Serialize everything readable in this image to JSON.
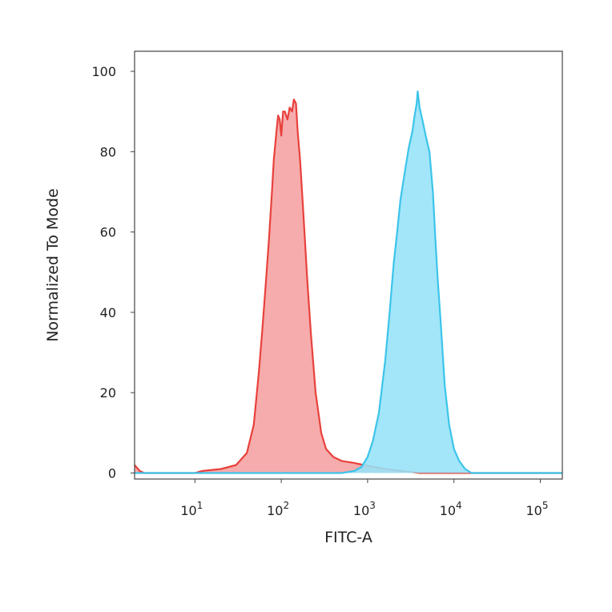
{
  "chart_data": {
    "type": "area",
    "title": "",
    "xlabel": "FITC-A",
    "ylabel": "Normalized To Mode",
    "x_scale": "log",
    "xlim": [
      2,
      180000
    ],
    "ylim": [
      -1.5,
      105
    ],
    "y_ticks": [
      {
        "value": 0,
        "label": "0"
      },
      {
        "value": 20,
        "label": "20"
      },
      {
        "value": 40,
        "label": "40"
      },
      {
        "value": 60,
        "label": "60"
      },
      {
        "value": 80,
        "label": "80"
      },
      {
        "value": 100,
        "label": "100"
      }
    ],
    "x_ticks": [
      {
        "value": 10,
        "base": "10",
        "exp": "1"
      },
      {
        "value": 100,
        "base": "10",
        "exp": "2"
      },
      {
        "value": 1000,
        "base": "10",
        "exp": "3"
      },
      {
        "value": 10000,
        "base": "10",
        "exp": "4"
      },
      {
        "value": 100000,
        "base": "10",
        "exp": "5"
      }
    ],
    "grid": false,
    "legend": "none",
    "series": [
      {
        "color": "#e8413c",
        "fill": "#f5a0a0",
        "points": [
          [
            2,
            2
          ],
          [
            2.3,
            0.5
          ],
          [
            2.6,
            0
          ],
          [
            10,
            0
          ],
          [
            12,
            0.5
          ],
          [
            20,
            1
          ],
          [
            30,
            2
          ],
          [
            40,
            5
          ],
          [
            48,
            12
          ],
          [
            55,
            25
          ],
          [
            60,
            35
          ],
          [
            65,
            45
          ],
          [
            72,
            58
          ],
          [
            78,
            70
          ],
          [
            82,
            78
          ],
          [
            88,
            85
          ],
          [
            92,
            89
          ],
          [
            96,
            88
          ],
          [
            100,
            84
          ],
          [
            105,
            90
          ],
          [
            110,
            90
          ],
          [
            118,
            88
          ],
          [
            125,
            91
          ],
          [
            133,
            90
          ],
          [
            140,
            93
          ],
          [
            148,
            92
          ],
          [
            155,
            85
          ],
          [
            165,
            78
          ],
          [
            180,
            65
          ],
          [
            200,
            48
          ],
          [
            220,
            35
          ],
          [
            250,
            20
          ],
          [
            290,
            10
          ],
          [
            330,
            6
          ],
          [
            400,
            4
          ],
          [
            500,
            3
          ],
          [
            700,
            2.5
          ],
          [
            900,
            2
          ],
          [
            1200,
            1.5
          ],
          [
            1600,
            1
          ],
          [
            2500,
            0.5
          ],
          [
            4000,
            0
          ],
          [
            180000,
            0
          ]
        ]
      },
      {
        "color": "#3cc4ea",
        "fill": "#96e2f8",
        "points": [
          [
            2,
            0
          ],
          [
            500,
            0
          ],
          [
            700,
            0.5
          ],
          [
            850,
            1.5
          ],
          [
            1000,
            4
          ],
          [
            1150,
            8
          ],
          [
            1350,
            15
          ],
          [
            1600,
            28
          ],
          [
            1800,
            40
          ],
          [
            2000,
            52
          ],
          [
            2200,
            60
          ],
          [
            2400,
            68
          ],
          [
            2700,
            75
          ],
          [
            3000,
            81
          ],
          [
            3300,
            85
          ],
          [
            3500,
            89
          ],
          [
            3700,
            92
          ],
          [
            3800,
            95
          ],
          [
            4000,
            91
          ],
          [
            4300,
            88
          ],
          [
            4700,
            84
          ],
          [
            5200,
            80
          ],
          [
            5700,
            70
          ],
          [
            6100,
            58
          ],
          [
            6500,
            48
          ],
          [
            7000,
            38
          ],
          [
            7800,
            22
          ],
          [
            8800,
            12
          ],
          [
            10000,
            6
          ],
          [
            11500,
            3
          ],
          [
            13500,
            1
          ],
          [
            16000,
            0
          ],
          [
            180000,
            0
          ]
        ]
      }
    ]
  }
}
